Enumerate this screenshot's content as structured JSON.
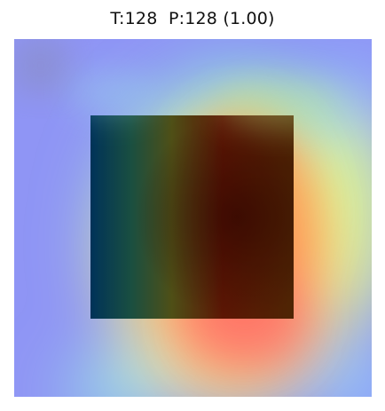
{
  "figure": {
    "title": "T:128  P:128 (1.00)"
  }
}
